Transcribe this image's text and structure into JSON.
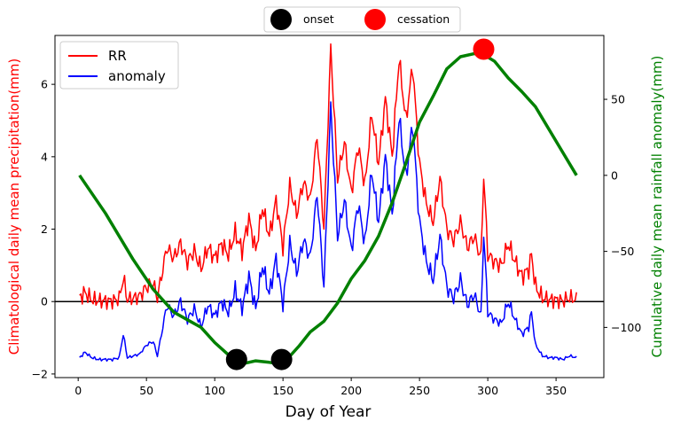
{
  "chart_data": {
    "type": "line",
    "xlabel": "Day of Year",
    "ylabel_left": "Climatological daily mean precipitation(mm)",
    "ylabel_right": "Cumulative daily mean rainfall anomaly(mm)",
    "xlim": [
      -17,
      385
    ],
    "ylim_left": [
      -2.1,
      7.35
    ],
    "ylim_right": [
      -133,
      92
    ],
    "x_ticks": [
      0,
      50,
      100,
      150,
      200,
      250,
      300,
      350
    ],
    "y_left_ticks": [
      -2,
      0,
      2,
      4,
      6
    ],
    "y_right_ticks": [
      -100,
      -50,
      0,
      50
    ],
    "zero_line": 0,
    "grid": false,
    "colors": {
      "rr": "#ff0000",
      "anomaly": "#0000ff",
      "cumulative": "#008000",
      "onset": "#000000",
      "cessation": "#ff0000",
      "left_label": "#ff0000",
      "right_label": "#008000"
    },
    "series": [
      {
        "name": "RR",
        "axis": "left",
        "anchors": [
          [
            1,
            0.12
          ],
          [
            5,
            0.25
          ],
          [
            10,
            0.05
          ],
          [
            15,
            0.02
          ],
          [
            25,
            0.02
          ],
          [
            30,
            0.08
          ],
          [
            33,
            0.65
          ],
          [
            36,
            0.05
          ],
          [
            45,
            0.15
          ],
          [
            50,
            0.4
          ],
          [
            55,
            0.5
          ],
          [
            58,
            0.1
          ],
          [
            62,
            0.9
          ],
          [
            65,
            1.5
          ],
          [
            70,
            1.2
          ],
          [
            75,
            1.6
          ],
          [
            80,
            1.1
          ],
          [
            85,
            1.4
          ],
          [
            90,
            0.9
          ],
          [
            95,
            1.5
          ],
          [
            100,
            1.2
          ],
          [
            105,
            1.6
          ],
          [
            110,
            1.3
          ],
          [
            115,
            1.9
          ],
          [
            120,
            1.4
          ],
          [
            125,
            2.3
          ],
          [
            130,
            1.4
          ],
          [
            135,
            2.6
          ],
          [
            140,
            1.8
          ],
          [
            145,
            2.8
          ],
          [
            150,
            1.5
          ],
          [
            155,
            3.2
          ],
          [
            160,
            2.4
          ],
          [
            165,
            3.3
          ],
          [
            170,
            2.8
          ],
          [
            175,
            4.6
          ],
          [
            180,
            2.0
          ],
          [
            185,
            7.0
          ],
          [
            190,
            3.4
          ],
          [
            195,
            4.4
          ],
          [
            200,
            3.0
          ],
          [
            205,
            4.3
          ],
          [
            210,
            3.2
          ],
          [
            215,
            5.2
          ],
          [
            220,
            3.8
          ],
          [
            225,
            5.6
          ],
          [
            230,
            4.0
          ],
          [
            235,
            6.7
          ],
          [
            240,
            5.0
          ],
          [
            245,
            6.5
          ],
          [
            250,
            3.8
          ],
          [
            255,
            2.7
          ],
          [
            260,
            2.2
          ],
          [
            265,
            3.4
          ],
          [
            270,
            2.0
          ],
          [
            275,
            1.7
          ],
          [
            280,
            2.2
          ],
          [
            285,
            1.5
          ],
          [
            290,
            1.8
          ],
          [
            295,
            1.2
          ],
          [
            297,
            3.5
          ],
          [
            300,
            1.3
          ],
          [
            305,
            1.1
          ],
          [
            310,
            1.0
          ],
          [
            315,
            1.6
          ],
          [
            320,
            1.1
          ],
          [
            325,
            0.7
          ],
          [
            330,
            0.9
          ],
          [
            332,
            1.3
          ],
          [
            335,
            0.4
          ],
          [
            340,
            0.1
          ],
          [
            345,
            0.05
          ],
          [
            350,
            0.05
          ],
          [
            355,
            0.02
          ],
          [
            360,
            0.1
          ],
          [
            365,
            0.05
          ]
        ],
        "jitter": [
          0.3,
          0.35
        ]
      },
      {
        "name": "anomaly",
        "axis": "left",
        "anchors": [
          [
            1,
            -1.55
          ],
          [
            5,
            -1.4
          ],
          [
            10,
            -1.55
          ],
          [
            15,
            -1.6
          ],
          [
            25,
            -1.6
          ],
          [
            30,
            -1.55
          ],
          [
            33,
            -0.9
          ],
          [
            36,
            -1.55
          ],
          [
            45,
            -1.45
          ],
          [
            50,
            -1.2
          ],
          [
            55,
            -1.1
          ],
          [
            58,
            -1.5
          ],
          [
            62,
            -0.7
          ],
          [
            65,
            -0.1
          ],
          [
            70,
            -0.4
          ],
          [
            75,
            0.0
          ],
          [
            80,
            -0.5
          ],
          [
            85,
            -0.2
          ],
          [
            90,
            -0.7
          ],
          [
            95,
            -0.1
          ],
          [
            100,
            -0.4
          ],
          [
            105,
            0.0
          ],
          [
            110,
            -0.3
          ],
          [
            115,
            0.3
          ],
          [
            120,
            -0.2
          ],
          [
            125,
            0.7
          ],
          [
            130,
            -0.2
          ],
          [
            135,
            1.0
          ],
          [
            140,
            0.2
          ],
          [
            145,
            1.2
          ],
          [
            150,
            -0.1
          ],
          [
            155,
            1.6
          ],
          [
            160,
            0.8
          ],
          [
            165,
            1.7
          ],
          [
            170,
            1.2
          ],
          [
            175,
            3.0
          ],
          [
            180,
            0.4
          ],
          [
            185,
            5.4
          ],
          [
            190,
            1.8
          ],
          [
            195,
            2.8
          ],
          [
            200,
            1.4
          ],
          [
            205,
            2.7
          ],
          [
            210,
            1.6
          ],
          [
            215,
            3.6
          ],
          [
            220,
            2.2
          ],
          [
            225,
            4.0
          ],
          [
            230,
            2.4
          ],
          [
            235,
            5.1
          ],
          [
            240,
            3.4
          ],
          [
            245,
            4.9
          ],
          [
            250,
            2.2
          ],
          [
            255,
            1.1
          ],
          [
            260,
            0.6
          ],
          [
            265,
            1.8
          ],
          [
            270,
            0.4
          ],
          [
            275,
            0.1
          ],
          [
            280,
            0.6
          ],
          [
            285,
            -0.1
          ],
          [
            290,
            0.2
          ],
          [
            295,
            -0.4
          ],
          [
            297,
            1.9
          ],
          [
            300,
            -0.3
          ],
          [
            305,
            -0.5
          ],
          [
            310,
            -0.6
          ],
          [
            315,
            0.0
          ],
          [
            320,
            -0.5
          ],
          [
            325,
            -0.9
          ],
          [
            330,
            -0.7
          ],
          [
            332,
            -0.3
          ],
          [
            335,
            -1.2
          ],
          [
            340,
            -1.5
          ],
          [
            345,
            -1.55
          ],
          [
            350,
            -1.55
          ],
          [
            355,
            -1.6
          ],
          [
            360,
            -1.5
          ],
          [
            365,
            -1.55
          ]
        ],
        "jitter": [
          0.3,
          0.35
        ]
      },
      {
        "name": "",
        "axis": "right",
        "line_width": 3.5,
        "anchors": [
          [
            1,
            0
          ],
          [
            20,
            -25
          ],
          [
            40,
            -55
          ],
          [
            55,
            -75
          ],
          [
            70,
            -90
          ],
          [
            80,
            -95
          ],
          [
            90,
            -100
          ],
          [
            100,
            -110
          ],
          [
            110,
            -118
          ],
          [
            115,
            -121
          ],
          [
            120,
            -124
          ],
          [
            130,
            -122
          ],
          [
            140,
            -123
          ],
          [
            148,
            -124
          ],
          [
            155,
            -119
          ],
          [
            162,
            -112
          ],
          [
            170,
            -103
          ],
          [
            180,
            -96
          ],
          [
            190,
            -84
          ],
          [
            200,
            -68
          ],
          [
            210,
            -56
          ],
          [
            220,
            -40
          ],
          [
            230,
            -18
          ],
          [
            240,
            8
          ],
          [
            250,
            35
          ],
          [
            260,
            52
          ],
          [
            270,
            70
          ],
          [
            280,
            78
          ],
          [
            290,
            80
          ],
          [
            296,
            80
          ],
          [
            305,
            75
          ],
          [
            315,
            64
          ],
          [
            325,
            55
          ],
          [
            335,
            45
          ],
          [
            345,
            30
          ],
          [
            355,
            15
          ],
          [
            365,
            0
          ]
        ],
        "jitter": [
          0,
          0
        ]
      }
    ],
    "markers": [
      {
        "name": "onset",
        "points": [
          [
            116,
            -1.6
          ],
          [
            149,
            -1.6
          ]
        ]
      },
      {
        "name": "cessation",
        "points": [
          [
            297,
            6.97
          ]
        ]
      }
    ],
    "legend_main": {
      "placement": "upper-left",
      "entries": [
        "RR",
        "anomaly"
      ]
    },
    "legend_top": {
      "placement": "above-plot",
      "entries": [
        "onset",
        "cessation"
      ]
    }
  }
}
